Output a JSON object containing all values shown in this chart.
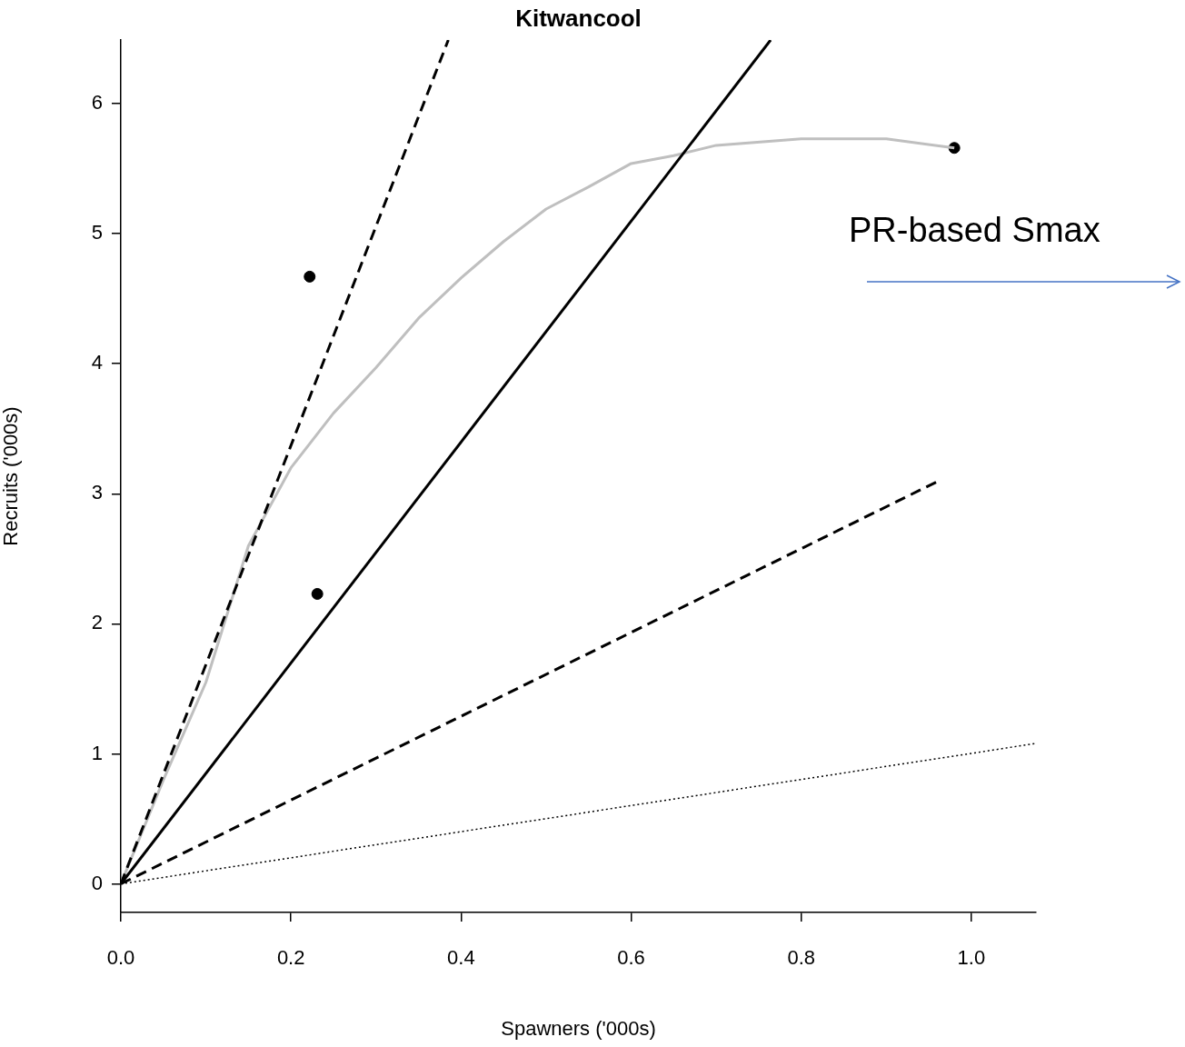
{
  "chart_data": {
    "type": "line",
    "title": "Kitwancool",
    "xlabel": "Spawners ('000s)",
    "ylabel": "Recruits ('000s)",
    "xlim": [
      0,
      1.076
    ],
    "ylim": [
      -0.22,
      6.49
    ],
    "xticks": [
      {
        "value": 0,
        "label": "0.0"
      },
      {
        "value": 0.2,
        "label": "0.2"
      },
      {
        "value": 0.4,
        "label": "0.4"
      },
      {
        "value": 0.6,
        "label": "0.6"
      },
      {
        "value": 0.8,
        "label": "0.8"
      },
      {
        "value": 1,
        "label": "1.0"
      }
    ],
    "yticks": [
      0,
      1,
      2,
      3,
      4,
      5,
      6
    ],
    "series": [
      {
        "type": "line",
        "color": "#000000",
        "line_style": "dashed",
        "marker": "none",
        "x": [
          0,
          0.385
        ],
        "values": [
          0,
          6.49
        ]
      },
      {
        "type": "line",
        "color": "#000000",
        "line_style": "solid",
        "marker": "none",
        "x": [
          0,
          0.764
        ],
        "values": [
          0,
          6.49
        ]
      },
      {
        "type": "line",
        "color": "#bfbfbf",
        "line_style": "solid",
        "marker": "none",
        "x": [
          0,
          0.05,
          0.1,
          0.15,
          0.2,
          0.25,
          0.3,
          0.35,
          0.4,
          0.45,
          0.5,
          0.55,
          0.6,
          0.65,
          0.7,
          0.8,
          0.9,
          0.98
        ],
        "values": [
          0,
          0.8,
          1.55,
          2.6,
          3.2,
          3.62,
          3.97,
          4.35,
          4.66,
          4.94,
          5.19,
          5.36,
          5.54,
          5.6,
          5.68,
          5.73,
          5.73,
          5.66
        ]
      },
      {
        "type": "line",
        "color": "#000000",
        "line_style": "dashed",
        "marker": "none",
        "x": [
          0,
          0.965
        ],
        "values": [
          0,
          3.11
        ]
      },
      {
        "type": "line",
        "color": "#000000",
        "line_style": "dotted",
        "marker": "none",
        "x": [
          0,
          1.076
        ],
        "values": [
          0,
          1.08
        ]
      },
      {
        "type": "scatter",
        "color": "#000000",
        "marker": "circle",
        "x": [
          0.222,
          0.231,
          0.98
        ],
        "values": [
          4.67,
          2.23,
          5.66
        ]
      }
    ],
    "annotations": [
      "PR-based Smax"
    ]
  }
}
